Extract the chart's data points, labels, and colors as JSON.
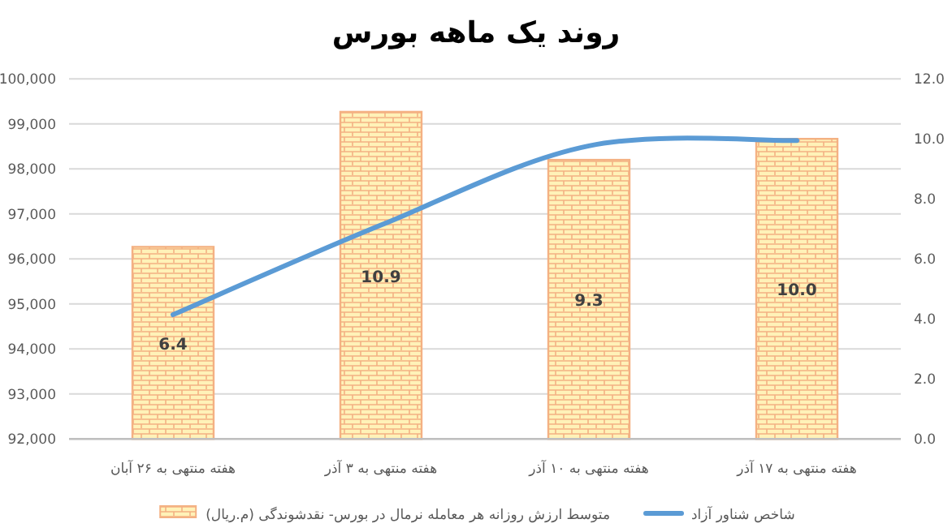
{
  "chart_data": {
    "type": "bar",
    "title": "روند یک ماهه بورس",
    "categories": [
      "هفته منتهی به ۲۶ آبان",
      "هفته منتهی به ۳ آذر",
      "هفته منتهی به ۱۰ آذر",
      "هفته منتهی به ۱۷ آذر"
    ],
    "series": [
      {
        "name": "شاخص شناور آزاد",
        "type": "line",
        "axis": "y",
        "color": "#5b9bd5",
        "values": [
          94760,
          96750,
          98510,
          98630
        ]
      },
      {
        "name": "متوسط ارزش روزانه هر معامله نرمال در بورس- نقدشوندگی (م.ریال)",
        "axis": "y2",
        "color": "#f4b183",
        "values": [
          6.4,
          10.9,
          9.3,
          10.0
        ],
        "value_labels": [
          "6.4",
          "10.9",
          "9.3",
          "10.0"
        ]
      }
    ],
    "ylim": [
      92000,
      100000
    ],
    "yticks": [
      {
        "value": 92000,
        "label": "92,000"
      },
      {
        "value": 93000,
        "label": "93,000"
      },
      {
        "value": 94000,
        "label": "94,000"
      },
      {
        "value": 95000,
        "label": "95,000"
      },
      {
        "value": 96000,
        "label": "96,000"
      },
      {
        "value": 97000,
        "label": "97,000"
      },
      {
        "value": 98000,
        "label": "98,000"
      },
      {
        "value": 99000,
        "label": "99,000"
      },
      {
        "value": 100000,
        "label": "100,000"
      }
    ],
    "y2lim": [
      0,
      12
    ],
    "y2ticks": [
      {
        "value": 0,
        "label": "0.0"
      },
      {
        "value": 2,
        "label": "2.0"
      },
      {
        "value": 4,
        "label": "4.0"
      },
      {
        "value": 6,
        "label": "6.0"
      },
      {
        "value": 8,
        "label": "8.0"
      },
      {
        "value": 10,
        "label": "10.0"
      },
      {
        "value": 12,
        "label": "12.0"
      }
    ],
    "grid": "y",
    "legend": "bottom",
    "marker": "none",
    "line_style": "solid"
  }
}
